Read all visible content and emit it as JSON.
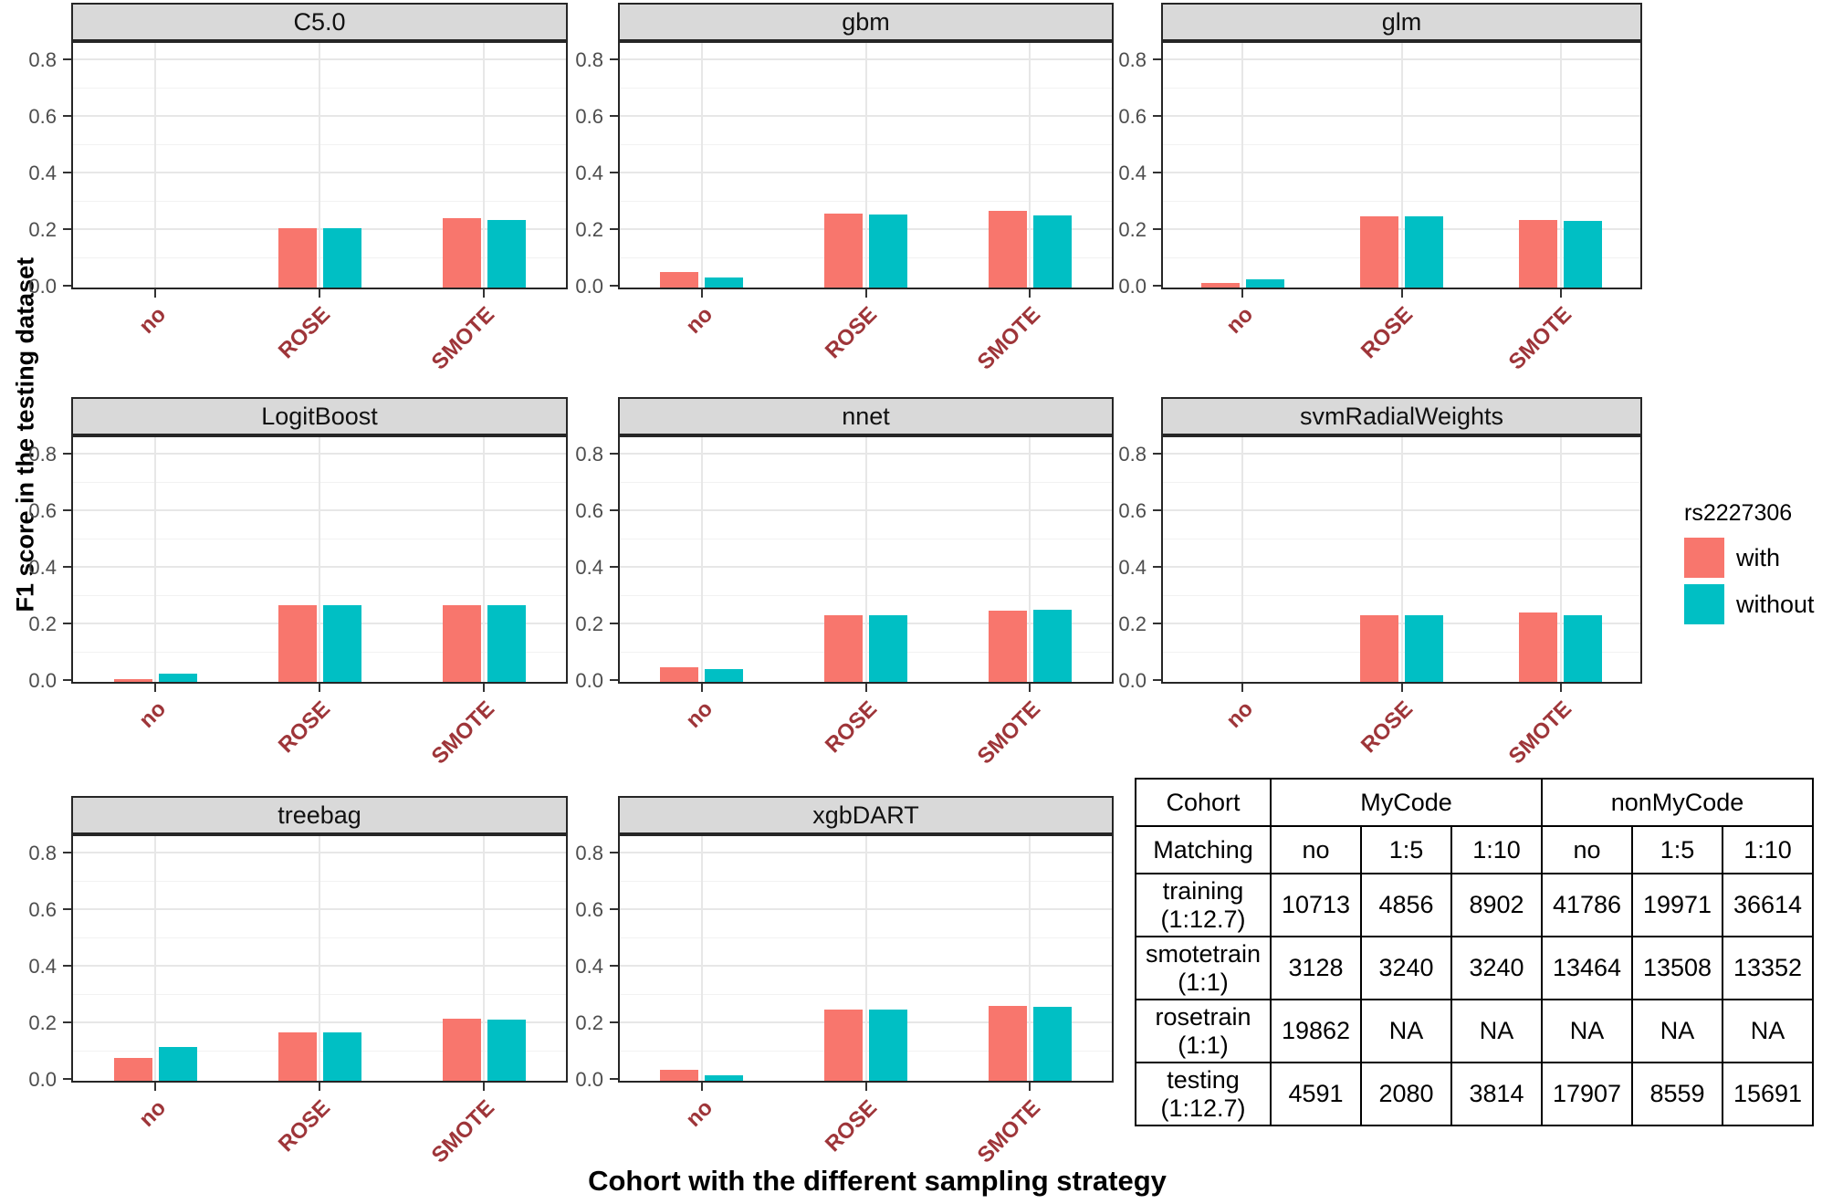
{
  "chart_meta": {
    "ylabel": "F1 score in the testing dataset",
    "xlabel": "Cohort with the different sampling strategy",
    "ylim": [
      0,
      0.87
    ],
    "yticks": [
      "0.0",
      "0.2",
      "0.4",
      "0.6",
      "0.8"
    ],
    "grid": true,
    "legend_position": "right",
    "facet_layout": "3 columns x 3 rows, table in last cell"
  },
  "colors": {
    "with_bar": "#F8766D",
    "without_bar": "#00BFC4",
    "x_tick_label": "#9E3539",
    "y_tick_label": "#4D4D4D",
    "strip_background": "#D9D9D9",
    "panel_border": "#262626",
    "grid_major": "#E7E7E7",
    "grid_minor": "#F2F2F2"
  },
  "legend": {
    "title": "rs2227306",
    "entries": [
      {
        "label": "with",
        "color": "#F8766D"
      },
      {
        "label": "without",
        "color": "#00BFC4"
      }
    ]
  },
  "chart_data": [
    {
      "type": "bar",
      "title": "C5.0",
      "categories": [
        "no",
        "ROSE",
        "SMOTE"
      ],
      "series": [
        {
          "name": "with",
          "values": [
            0,
            0.21,
            0.245
          ]
        },
        {
          "name": "without",
          "values": [
            0,
            0.21,
            0.24
          ]
        }
      ]
    },
    {
      "type": "bar",
      "title": "gbm",
      "categories": [
        "no",
        "ROSE",
        "SMOTE"
      ],
      "series": [
        {
          "name": "with",
          "values": [
            0.055,
            0.26,
            0.27
          ]
        },
        {
          "name": "without",
          "values": [
            0.037,
            0.258,
            0.255
          ]
        }
      ]
    },
    {
      "type": "bar",
      "title": "glm",
      "categories": [
        "no",
        "ROSE",
        "SMOTE"
      ],
      "series": [
        {
          "name": "with",
          "values": [
            0.015,
            0.25,
            0.24
          ]
        },
        {
          "name": "without",
          "values": [
            0.03,
            0.25,
            0.235
          ]
        }
      ]
    },
    {
      "type": "bar",
      "title": "LogitBoost",
      "categories": [
        "no",
        "ROSE",
        "SMOTE"
      ],
      "series": [
        {
          "name": "with",
          "values": [
            0.01,
            0.27,
            0.27
          ]
        },
        {
          "name": "without",
          "values": [
            0.03,
            0.27,
            0.27
          ]
        }
      ]
    },
    {
      "type": "bar",
      "title": "nnet",
      "categories": [
        "no",
        "ROSE",
        "SMOTE"
      ],
      "series": [
        {
          "name": "with",
          "values": [
            0.05,
            0.235,
            0.25
          ]
        },
        {
          "name": "without",
          "values": [
            0.045,
            0.235,
            0.255
          ]
        }
      ]
    },
    {
      "type": "bar",
      "title": "svmRadialWeights",
      "categories": [
        "no",
        "ROSE",
        "SMOTE"
      ],
      "series": [
        {
          "name": "with",
          "values": [
            0,
            0.235,
            0.245
          ]
        },
        {
          "name": "without",
          "values": [
            0,
            0.235,
            0.235
          ]
        }
      ]
    },
    {
      "type": "bar",
      "title": "treebag",
      "categories": [
        "no",
        "ROSE",
        "SMOTE"
      ],
      "series": [
        {
          "name": "with",
          "values": [
            0.08,
            0.17,
            0.22
          ]
        },
        {
          "name": "without",
          "values": [
            0.12,
            0.17,
            0.215
          ]
        }
      ]
    },
    {
      "type": "bar",
      "title": "xgbDART",
      "categories": [
        "no",
        "ROSE",
        "SMOTE"
      ],
      "series": [
        {
          "name": "with",
          "values": [
            0.038,
            0.253,
            0.265
          ]
        },
        {
          "name": "without",
          "values": [
            0.02,
            0.252,
            0.26
          ]
        }
      ]
    },
    {
      "type": "table",
      "header_row1": [
        {
          "text": "Cohort",
          "colspan": 1
        },
        {
          "text": "MyCode",
          "colspan": 3
        },
        {
          "text": "nonMyCode",
          "colspan": 3
        }
      ],
      "header_row2": [
        "Matching",
        "no",
        "1:5",
        "1:10",
        "no",
        "1:5",
        "1:10"
      ],
      "rows": [
        {
          "label": "training\n(1:12.7)",
          "values": [
            "10713",
            "4856",
            "8902",
            "41786",
            "19971",
            "36614"
          ]
        },
        {
          "label": "smotetrain\n(1:1)",
          "values": [
            "3128",
            "3240",
            "3240",
            "13464",
            "13508",
            "13352"
          ]
        },
        {
          "label": "rosetrain\n(1:1)",
          "values": [
            "19862",
            "NA",
            "NA",
            "NA",
            "NA",
            "NA"
          ]
        },
        {
          "label": "testing\n(1:12.7)",
          "values": [
            "4591",
            "2080",
            "3814",
            "17907",
            "8559",
            "15691"
          ]
        }
      ]
    }
  ]
}
